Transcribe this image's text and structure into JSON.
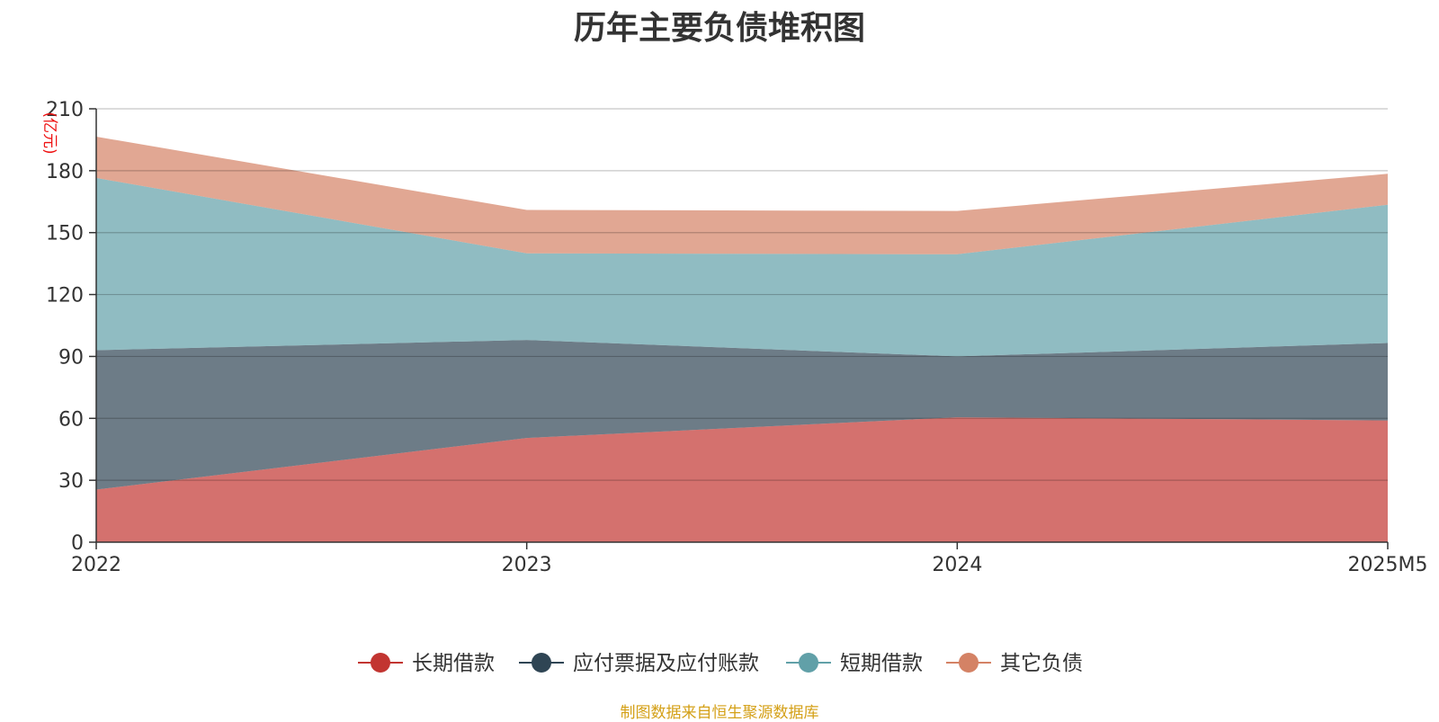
{
  "title": "历年主要负债堆积图",
  "source": "制图数据来自恒生聚源数据库",
  "chart_data": {
    "type": "area",
    "stacked": true,
    "title": "历年主要负债堆积图",
    "ylabel": "(亿元)",
    "ylabel_color": "#ee1111",
    "x": [
      "2022",
      "2023",
      "2024",
      "2025M5"
    ],
    "ylim": [
      0,
      210
    ],
    "yticks": [
      0,
      30,
      60,
      90,
      120,
      150,
      180,
      210
    ],
    "grid": true,
    "legend_position": "bottom",
    "series": [
      {
        "name": "长期借款",
        "values": [
          25.5,
          50.5,
          60.5,
          59.0
        ],
        "color": "#c23531"
      },
      {
        "name": "应付票据及应付账款",
        "values": [
          67.5,
          47.5,
          29.5,
          37.5
        ],
        "color": "#2f4554"
      },
      {
        "name": "短期借款",
        "values": [
          83.5,
          42.0,
          49.5,
          67.0
        ],
        "color": "#61a0a8"
      },
      {
        "name": "其它负债",
        "values": [
          20.0,
          21.0,
          21.0,
          15.0
        ],
        "color": "#d48265"
      }
    ]
  }
}
